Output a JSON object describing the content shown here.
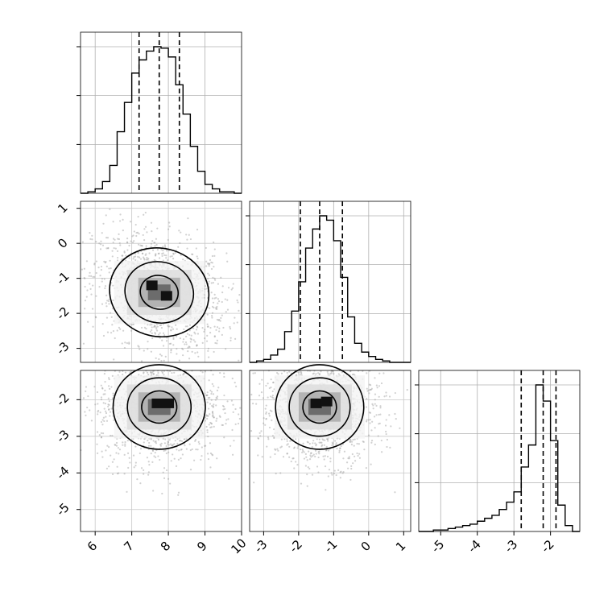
{
  "chart_data": {
    "type": "corner",
    "title": "",
    "parameters": [
      {
        "name": "",
        "range": [
          5.6,
          10.0
        ],
        "ticks": [
          "6",
          "7",
          "8",
          "9",
          "10"
        ]
      },
      {
        "name": "",
        "range": [
          -3.4,
          1.2
        ],
        "ticks": [
          "-3",
          "-2",
          "-1",
          "0",
          "1"
        ]
      },
      {
        "name": "",
        "range": [
          -5.6,
          -1.2
        ],
        "ticks": [
          "-5",
          "-4",
          "-3",
          "-2"
        ]
      }
    ],
    "quantiles": [
      [
        7.2,
        7.75,
        8.3
      ],
      [
        -1.95,
        -1.4,
        -0.75
      ],
      [
        -2.8,
        -2.2,
        -1.85
      ]
    ],
    "histograms": [
      {
        "bin_edges": [
          5.6,
          5.8,
          6.0,
          6.2,
          6.4,
          6.6,
          6.8,
          7.0,
          7.2,
          7.4,
          7.6,
          7.8,
          8.0,
          8.2,
          8.4,
          8.6,
          8.8,
          9.0,
          9.2,
          9.4,
          9.6,
          9.8,
          10.0
        ],
        "counts": [
          0.0,
          0.01,
          0.03,
          0.08,
          0.19,
          0.42,
          0.62,
          0.82,
          0.91,
          0.97,
          1.0,
          0.99,
          0.93,
          0.74,
          0.54,
          0.32,
          0.15,
          0.06,
          0.03,
          0.01,
          0.01,
          0.0
        ]
      },
      {
        "bin_edges": [
          -3.4,
          -3.2,
          -3.0,
          -2.8,
          -2.6,
          -2.4,
          -2.2,
          -2.0,
          -1.8,
          -1.6,
          -1.4,
          -1.2,
          -1.0,
          -0.8,
          -0.6,
          -0.4,
          -0.2,
          0.0,
          0.2,
          0.4,
          0.6,
          0.8,
          1.0,
          1.2
        ],
        "counts": [
          0.0,
          0.01,
          0.02,
          0.05,
          0.09,
          0.21,
          0.35,
          0.55,
          0.78,
          0.91,
          1.0,
          0.97,
          0.83,
          0.58,
          0.31,
          0.13,
          0.07,
          0.04,
          0.02,
          0.01,
          0.0,
          0.0,
          0.0
        ]
      },
      {
        "bin_edges": [
          -5.6,
          -5.4,
          -5.2,
          -5.0,
          -4.8,
          -4.6,
          -4.4,
          -4.2,
          -4.0,
          -3.8,
          -3.6,
          -3.4,
          -3.2,
          -3.0,
          -2.8,
          -2.6,
          -2.4,
          -2.2,
          -2.0,
          -1.8,
          -1.6,
          -1.4,
          -1.2
        ],
        "counts": [
          0.0,
          0.0,
          0.01,
          0.01,
          0.02,
          0.03,
          0.04,
          0.05,
          0.07,
          0.09,
          0.11,
          0.15,
          0.2,
          0.27,
          0.44,
          0.59,
          1.0,
          0.89,
          0.62,
          0.18,
          0.04,
          0.0
        ]
      }
    ],
    "pairs": [
      {
        "row": 1,
        "col": 0,
        "center": [
          7.75,
          -1.4
        ],
        "spread": [
          0.65,
          0.6
        ],
        "corr": -0.3,
        "peaks": [
          [
            7.55,
            -1.2
          ],
          [
            7.95,
            -1.5
          ]
        ]
      },
      {
        "row": 2,
        "col": 0,
        "center": [
          7.75,
          -2.2
        ],
        "spread": [
          0.6,
          0.55
        ],
        "corr": 0.0,
        "peaks": [
          [
            7.7,
            -2.1
          ],
          [
            8.0,
            -2.1
          ]
        ]
      },
      {
        "row": 2,
        "col": 1,
        "center": [
          -1.4,
          -2.2
        ],
        "spread": [
          0.6,
          0.55
        ],
        "corr": 0.0,
        "peaks": [
          [
            -1.5,
            -2.1
          ],
          [
            -1.2,
            -2.05
          ]
        ]
      }
    ],
    "grid": true,
    "legend": false
  }
}
